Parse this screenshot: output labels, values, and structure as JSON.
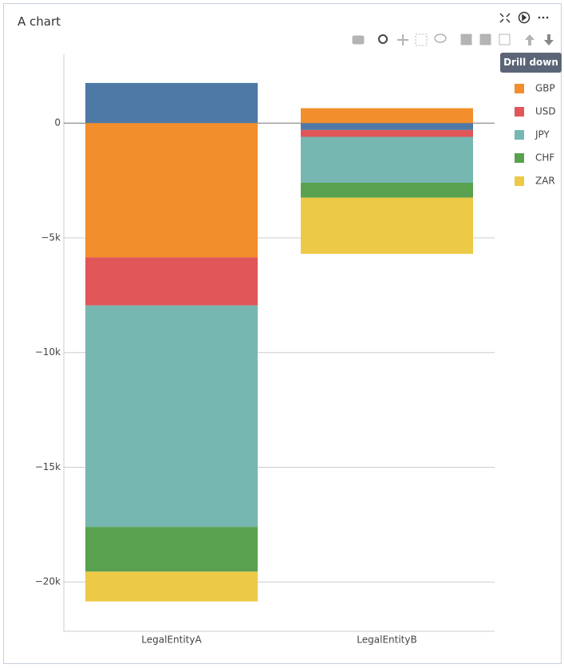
{
  "title": "A chart",
  "toolbar": {
    "tooltip": "Drill down"
  },
  "chart_data": {
    "type": "bar",
    "stacking": "relative",
    "categories": [
      "LegalEntityA",
      "LegalEntityB"
    ],
    "series": [
      {
        "color": "#4e79a7",
        "values": [
          1750,
          -300
        ]
      },
      {
        "name": "GBP",
        "color": "#f28e2b",
        "values": [
          -5850,
          650
        ]
      },
      {
        "name": "USD",
        "color": "#e15759",
        "values": [
          -2100,
          -300
        ]
      },
      {
        "name": "JPY",
        "color": "#76b7b2",
        "values": [
          -9650,
          -2000
        ]
      },
      {
        "name": "CHF",
        "color": "#59a14f",
        "values": [
          -1950,
          -650
        ]
      },
      {
        "name": "ZAR",
        "color": "#edc948",
        "values": [
          -1300,
          -2450
        ]
      }
    ],
    "ylim": [
      -22150,
      3000
    ],
    "yticks": [
      {
        "value": -20000,
        "label": "−20k"
      },
      {
        "value": -15000,
        "label": "−15k"
      },
      {
        "value": -10000,
        "label": "−10k"
      },
      {
        "value": -5000,
        "label": "−5k"
      },
      0
    ],
    "grid": true
  }
}
